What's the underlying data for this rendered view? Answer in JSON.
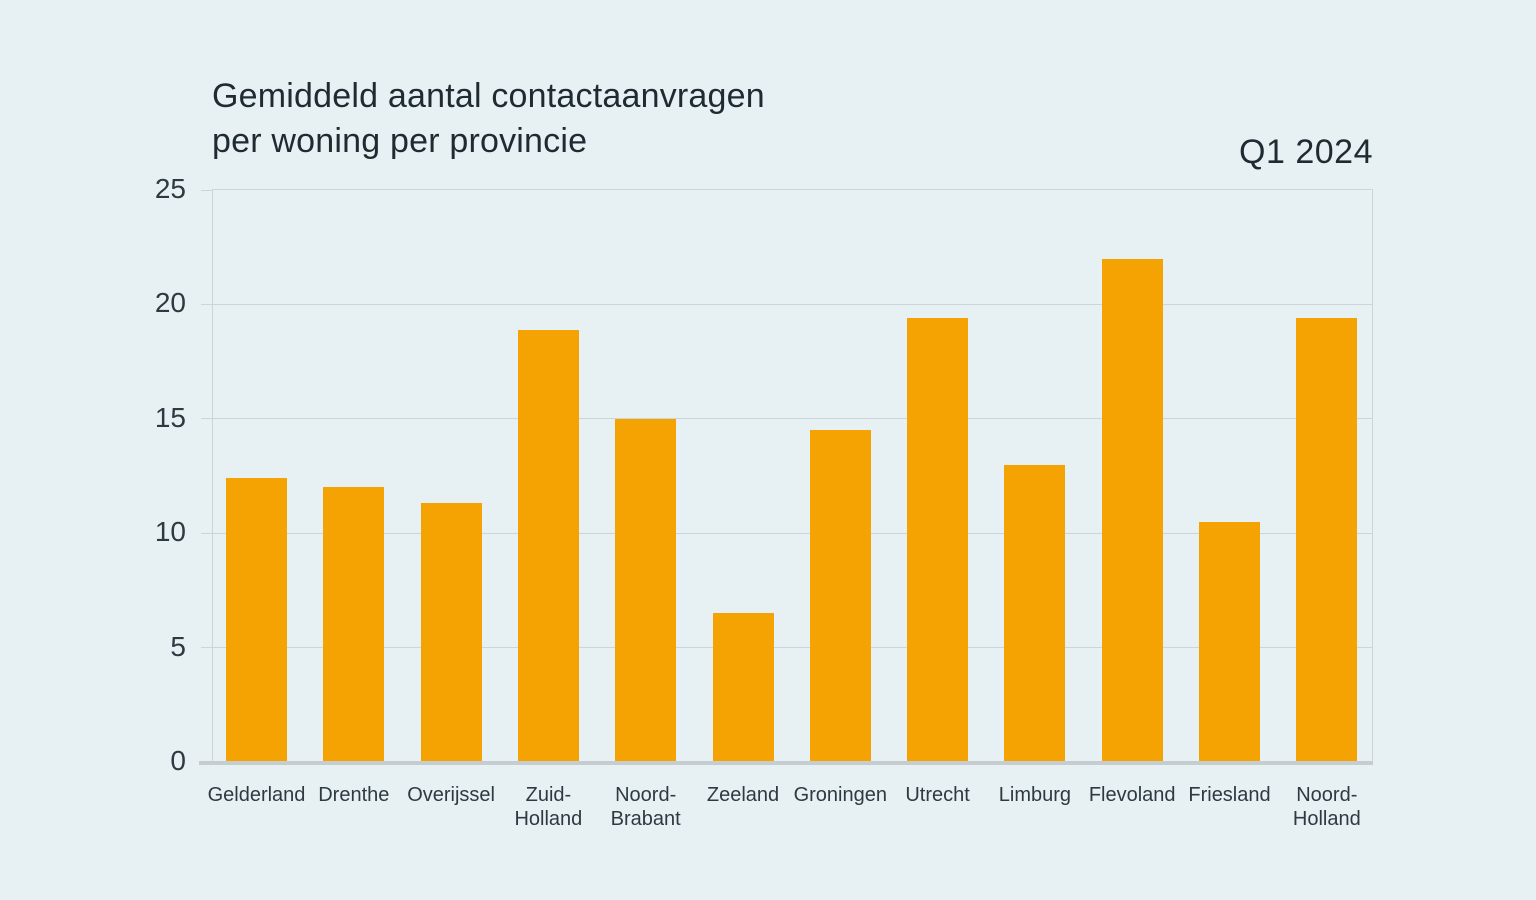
{
  "title": {
    "line1": "Gemiddeld aantal contactaanvragen",
    "line2": "per woning per provincie"
  },
  "period": "Q1 2024",
  "colors": {
    "background": "#e7f1f4",
    "bar": "#f5a303",
    "grid": "#ccd5d9",
    "axis": "#c5cdd1",
    "title_text": "#1f2b33",
    "tick_text": "#2d3a42"
  },
  "chart_data": {
    "type": "bar",
    "title": "Gemiddeld aantal contactaanvragen per woning per provincie",
    "subtitle": "Q1 2024",
    "xlabel": "",
    "ylabel": "",
    "categories": [
      "Gelderland",
      "Drenthe",
      "Overijssel",
      "Zuid-Holland",
      "Noord-Brabant",
      "Zeeland",
      "Groningen",
      "Utrecht",
      "Limburg",
      "Flevoland",
      "Friesland",
      "Noord-Holland"
    ],
    "category_label_lines": [
      [
        "Gelderland"
      ],
      [
        "Drenthe"
      ],
      [
        "Overijssel"
      ],
      [
        "Zuid-",
        "Holland"
      ],
      [
        "Noord-",
        "Brabant"
      ],
      [
        "Zeeland"
      ],
      [
        "Groningen"
      ],
      [
        "Utrecht"
      ],
      [
        "Limburg"
      ],
      [
        "Flevoland"
      ],
      [
        "Friesland"
      ],
      [
        "Noord-",
        "Holland"
      ]
    ],
    "values": [
      12.4,
      12.0,
      11.3,
      18.9,
      15.0,
      6.5,
      14.5,
      19.4,
      13.0,
      22.0,
      10.5,
      19.4
    ],
    "yticks": [
      0,
      5,
      10,
      15,
      20,
      25
    ],
    "ylim": [
      0,
      25
    ],
    "grid": true,
    "legend_position": "none",
    "bar_color": "#f5a303"
  }
}
